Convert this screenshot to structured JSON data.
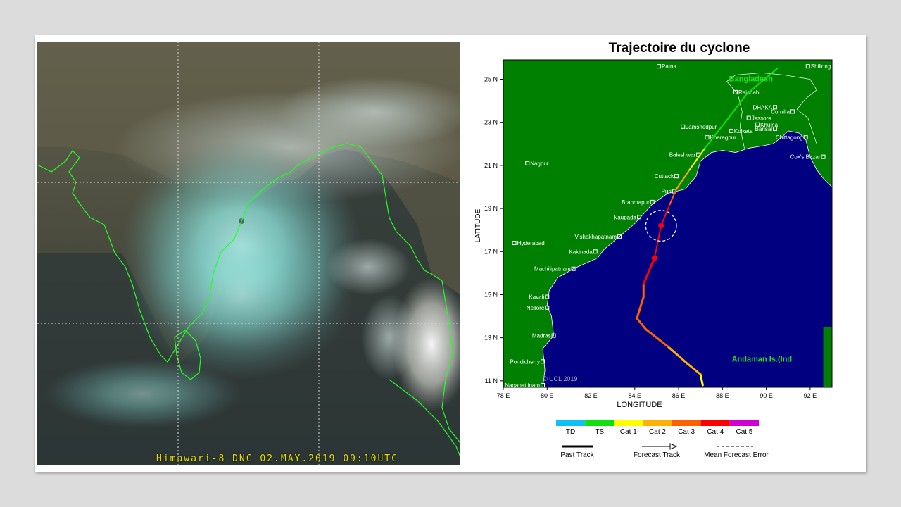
{
  "satellite": {
    "caption": "Himawari-8  DNC 02.MAY.2019 09:10UTC"
  },
  "chart": {
    "title": "Trajectoire du cyclone",
    "xlabel": "LONGITUDE",
    "ylabel": "LATITUDE",
    "x_ticks": [
      "78 E",
      "80 E",
      "82 E",
      "84 E",
      "86 E",
      "88 E",
      "90 E",
      "92 E"
    ],
    "y_ticks": [
      "11 N",
      "13 N",
      "15 N",
      "17 N",
      "19 N",
      "21 N",
      "23 N",
      "25 N"
    ],
    "copyright": "© UCL 2019",
    "regions": [
      {
        "name": "Bangladesh",
        "lon": 89.3,
        "lat": 24.9
      },
      {
        "name": "Andaman Is.(Ind",
        "lon": 89.8,
        "lat": 11.9
      }
    ],
    "cities": [
      {
        "name": "Patna",
        "lon": 85.1,
        "lat": 25.6
      },
      {
        "name": "Shillong",
        "lon": 91.9,
        "lat": 25.6
      },
      {
        "name": "Rajshahi",
        "lon": 88.6,
        "lat": 24.4
      },
      {
        "name": "DHAKA",
        "lon": 90.4,
        "lat": 23.7
      },
      {
        "name": "Comilla",
        "lon": 91.2,
        "lat": 23.5
      },
      {
        "name": "Jessore",
        "lon": 89.2,
        "lat": 23.2
      },
      {
        "name": "Jamshedpur",
        "lon": 86.2,
        "lat": 22.8
      },
      {
        "name": "Khulna",
        "lon": 89.6,
        "lat": 22.9
      },
      {
        "name": "Kolkata",
        "lon": 88.4,
        "lat": 22.6
      },
      {
        "name": "Barisal",
        "lon": 90.4,
        "lat": 22.7
      },
      {
        "name": "Kharagpur",
        "lon": 87.3,
        "lat": 22.3
      },
      {
        "name": "Chittagong",
        "lon": 91.8,
        "lat": 22.3
      },
      {
        "name": "Baleshwar",
        "lon": 86.9,
        "lat": 21.5
      },
      {
        "name": "Cox's Bazar",
        "lon": 92.6,
        "lat": 21.4
      },
      {
        "name": "Nagpur",
        "lon": 79.1,
        "lat": 21.1
      },
      {
        "name": "Cuttack",
        "lon": 85.9,
        "lat": 20.5
      },
      {
        "name": "Puri",
        "lon": 85.8,
        "lat": 19.8
      },
      {
        "name": "Brahmapur",
        "lon": 84.8,
        "lat": 19.3
      },
      {
        "name": "Naupada",
        "lon": 84.2,
        "lat": 18.6
      },
      {
        "name": "Vishakhapatnam",
        "lon": 83.3,
        "lat": 17.7
      },
      {
        "name": "Hyderabad",
        "lon": 78.5,
        "lat": 17.4
      },
      {
        "name": "Kakinada",
        "lon": 82.2,
        "lat": 17.0
      },
      {
        "name": "Machilipatnam",
        "lon": 81.2,
        "lat": 16.2
      },
      {
        "name": "Kavali",
        "lon": 80.0,
        "lat": 14.9
      },
      {
        "name": "Nellore",
        "lon": 80.0,
        "lat": 14.4
      },
      {
        "name": "Madras",
        "lon": 80.3,
        "lat": 13.1
      },
      {
        "name": "Pondicherry",
        "lon": 79.8,
        "lat": 11.9
      },
      {
        "name": "Nagapattinam",
        "lon": 79.8,
        "lat": 10.8
      }
    ],
    "track": [
      {
        "lon": 87.1,
        "lat": 10.8,
        "cat": "TS"
      },
      {
        "lon": 87.0,
        "lat": 11.3,
        "cat": "Cat 1"
      },
      {
        "lon": 86.4,
        "lat": 11.8,
        "cat": "Cat 2"
      },
      {
        "lon": 85.5,
        "lat": 12.6,
        "cat": "Cat 2"
      },
      {
        "lon": 84.5,
        "lat": 13.4,
        "cat": "Cat 3"
      },
      {
        "lon": 84.1,
        "lat": 13.9,
        "cat": "Cat 3"
      },
      {
        "lon": 84.4,
        "lat": 14.9,
        "cat": "Cat 3"
      },
      {
        "lon": 84.4,
        "lat": 15.5,
        "cat": "Cat 3"
      },
      {
        "lon": 84.9,
        "lat": 16.7,
        "cat": "Cat 4"
      },
      {
        "lon": 85.2,
        "lat": 18.2,
        "cat": "Cat 4"
      },
      {
        "lon": 85.6,
        "lat": 19.2,
        "cat": "Cat 4"
      },
      {
        "lon": 85.9,
        "lat": 19.9,
        "cat": "Cat 3"
      },
      {
        "lon": 86.5,
        "lat": 20.8,
        "cat": "Cat 2"
      },
      {
        "lon": 87.2,
        "lat": 21.8,
        "cat": "Cat 1"
      },
      {
        "lon": 88.2,
        "lat": 23.1,
        "cat": "TS"
      },
      {
        "lon": 89.1,
        "lat": 24.3,
        "cat": "TS"
      },
      {
        "lon": 90.5,
        "lat": 25.5,
        "cat": "TS"
      }
    ],
    "markers": [
      {
        "lon": 84.9,
        "lat": 16.7
      },
      {
        "lon": 85.2,
        "lat": 18.2
      }
    ],
    "forecast_error_circle": {
      "lon": 85.2,
      "lat": 18.2,
      "radius_deg": 0.7
    },
    "legend": {
      "categories": [
        {
          "label": "TD",
          "color": "#10c0f0"
        },
        {
          "label": "TS",
          "color": "#10e010"
        },
        {
          "label": "Cat 1",
          "color": "#ffff00"
        },
        {
          "label": "Cat 2",
          "color": "#ffb000"
        },
        {
          "label": "Cat 3",
          "color": "#ff6000"
        },
        {
          "label": "Cat 4",
          "color": "#ff0000"
        },
        {
          "label": "Cat 5",
          "color": "#d000d0"
        }
      ],
      "past_track": "Past Track",
      "forecast_track": "Forecast Track",
      "mean_error": "Mean Forecast Error"
    }
  }
}
